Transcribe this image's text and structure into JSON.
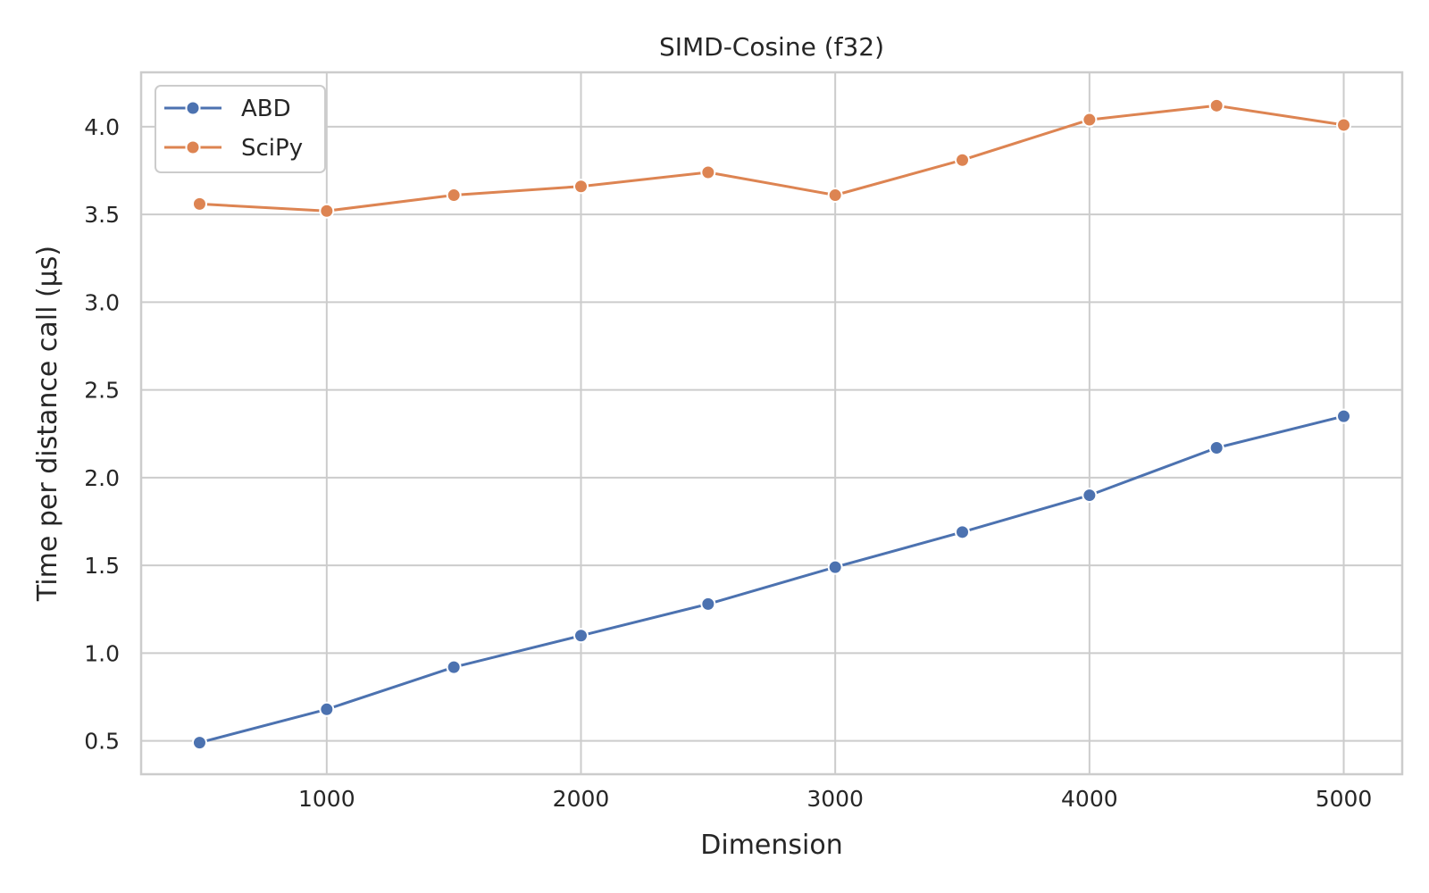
{
  "chart_data": {
    "type": "line",
    "title": "SIMD-Cosine (f32)",
    "xlabel": "Dimension",
    "ylabel": "Time per distance call (µs)",
    "x": [
      500,
      1000,
      1500,
      2000,
      2500,
      3000,
      3500,
      4000,
      4500,
      5000
    ],
    "xlim": [
      270,
      5230
    ],
    "ylim": [
      0.31,
      4.31
    ],
    "xticks": [
      1000,
      2000,
      3000,
      4000,
      5000
    ],
    "yticks": [
      0.5,
      1.0,
      1.5,
      2.0,
      2.5,
      3.0,
      3.5,
      4.0
    ],
    "xtick_labels": [
      "1000",
      "2000",
      "3000",
      "4000",
      "5000"
    ],
    "ytick_labels": [
      "0.5",
      "1.0",
      "1.5",
      "2.0",
      "2.5",
      "3.0",
      "3.5",
      "4.0"
    ],
    "grid": true,
    "legend_position": "top-left",
    "series": [
      {
        "name": "ABD",
        "color": "#4c72b0",
        "values": [
          0.49,
          0.68,
          0.92,
          1.1,
          1.28,
          1.49,
          1.69,
          1.9,
          2.17,
          2.35
        ]
      },
      {
        "name": "SciPy",
        "color": "#dd8452",
        "values": [
          3.56,
          3.52,
          3.61,
          3.66,
          3.74,
          3.61,
          3.81,
          4.04,
          4.12,
          4.01
        ]
      }
    ]
  }
}
